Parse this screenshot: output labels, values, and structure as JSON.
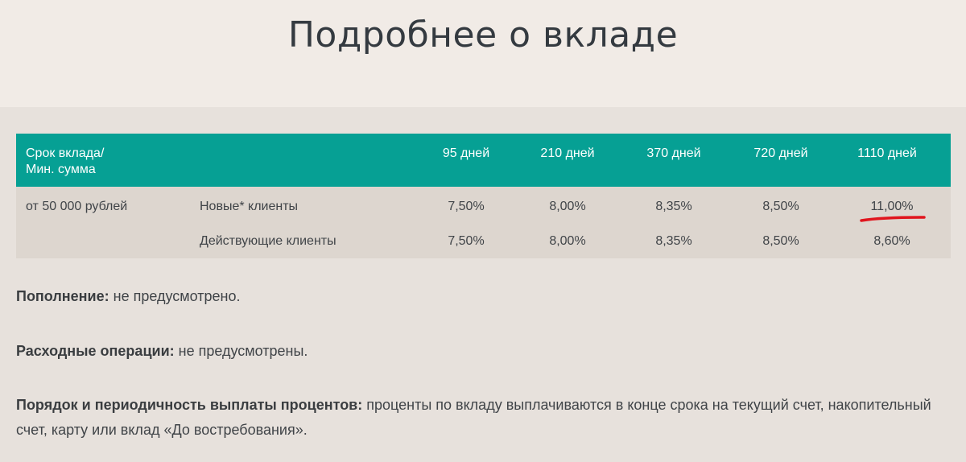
{
  "title": "Подробнее о вкладе",
  "table": {
    "header_label_line1": "Срок вклада/",
    "header_label_line2": "Мин. сумма",
    "terms": [
      "95 дней",
      "210 дней",
      "370 дней",
      "720 дней",
      "1110 дней"
    ],
    "min_sum": "от 50 000 рублей",
    "rows": [
      {
        "client_type": "Новые* клиенты",
        "rates": [
          "7,50%",
          "8,00%",
          "8,35%",
          "8,50%",
          "11,00%"
        ]
      },
      {
        "client_type": "Действующие клиенты",
        "rates": [
          "7,50%",
          "8,00%",
          "8,35%",
          "8,50%",
          "8,60%"
        ]
      }
    ],
    "highlighted_rate": "11,00%"
  },
  "info": {
    "replenishment_label": "Пополнение:",
    "replenishment_value": "не предусмотрено.",
    "expenses_label": "Расходные операции:",
    "expenses_value": "не предусмотрены.",
    "interest_label": "Порядок и периодичность выплаты процентов:",
    "interest_value": "проценты по вкладу выплачиваются в конце срока на текущий счет, накопительный счет, карту или вклад «До востребования»."
  },
  "colors": {
    "header_bg": "#06a094",
    "page_bg": "#e7e1dc",
    "hero_bg": "#f1ebe6",
    "table_bg": "#ddd6cf",
    "highlight_mark": "#e0151d"
  }
}
